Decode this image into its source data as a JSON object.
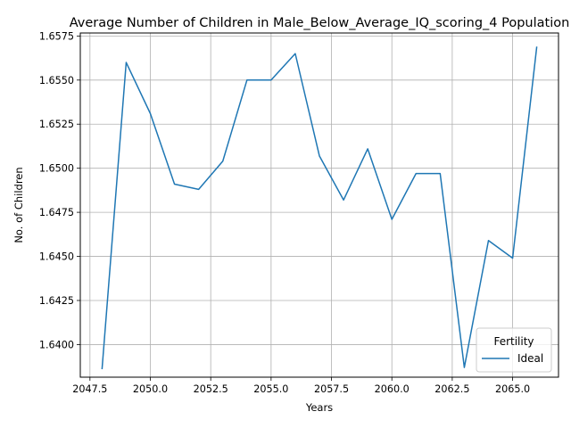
{
  "chart_data": {
    "type": "line",
    "title": "Average Number of Children in Male_Below_Average_IQ_scoring_4 Population",
    "xlabel": "Years",
    "ylabel": "No. of Children",
    "xlim": [
      2047.1,
      2066.9
    ],
    "ylim": [
      1.63815,
      1.65767
    ],
    "x_ticks": [
      2047.5,
      2050.0,
      2052.5,
      2055.0,
      2057.5,
      2060.0,
      2062.5,
      2065.0
    ],
    "x_tick_labels": [
      "2047.5",
      "2050.0",
      "2052.5",
      "2055.0",
      "2057.5",
      "2060.0",
      "2062.5",
      "2065.0"
    ],
    "y_ticks": [
      1.64,
      1.6425,
      1.645,
      1.6475,
      1.65,
      1.6525,
      1.655,
      1.6575
    ],
    "y_tick_labels": [
      "1.6400",
      "1.6425",
      "1.6450",
      "1.6475",
      "1.6500",
      "1.6525",
      "1.6550",
      "1.6575"
    ],
    "grid": true,
    "legend": {
      "title": "Fertility",
      "placement": "lower-right"
    },
    "series": [
      {
        "name": "Ideal",
        "color": "#1f77b4",
        "x": [
          2048,
          2049,
          2050,
          2051,
          2052,
          2053,
          2054,
          2055,
          2056,
          2057,
          2058,
          2059,
          2060,
          2061,
          2062,
          2063,
          2064,
          2065,
          2066
        ],
        "y": [
          1.6386,
          1.656,
          1.6531,
          1.6491,
          1.6488,
          1.6504,
          1.655,
          1.655,
          1.6565,
          1.6507,
          1.6482,
          1.6511,
          1.6471,
          1.6497,
          1.6497,
          1.6387,
          1.6459,
          1.6449,
          1.6569
        ]
      }
    ]
  }
}
